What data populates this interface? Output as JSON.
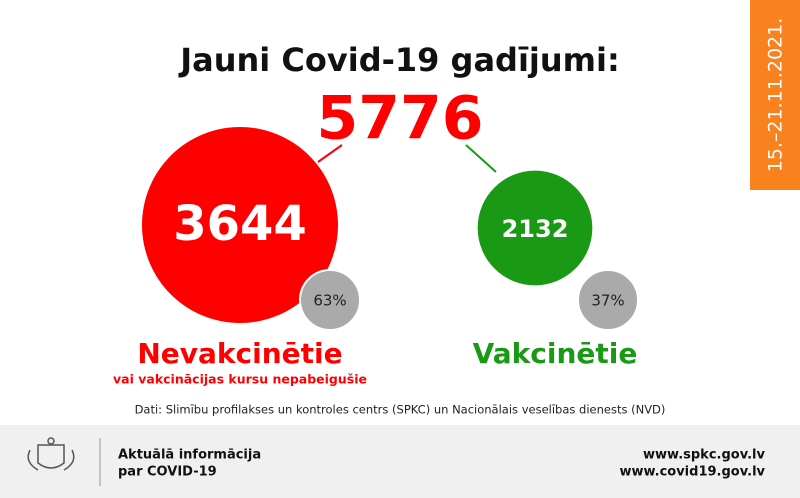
{
  "date_range": "15.–21.11.2021.",
  "title": "Jauni Covid-19 gadījumi:",
  "total": 5776,
  "groups": [
    {
      "value": 3644,
      "percent": 63,
      "percent_label": "63%",
      "label": "Nevakcinētie",
      "sublabel": "vai vakcinācijas kursu nepabeigušie",
      "color": "#ff0000"
    },
    {
      "value": 2132,
      "percent": 37,
      "percent_label": "37%",
      "label": "Vakcinētie",
      "color": "#1a9a14"
    }
  ],
  "source": "Dati: Slimību profilakses un kontroles centrs (SPKC) un Nacionālais veselības dienests (NVD)",
  "footer": {
    "info_lines": [
      "Aktuālā informācija",
      "par COVID-19"
    ],
    "links": [
      "www.spkc.gov.lv",
      "www.covid19.gov.lv"
    ]
  }
}
